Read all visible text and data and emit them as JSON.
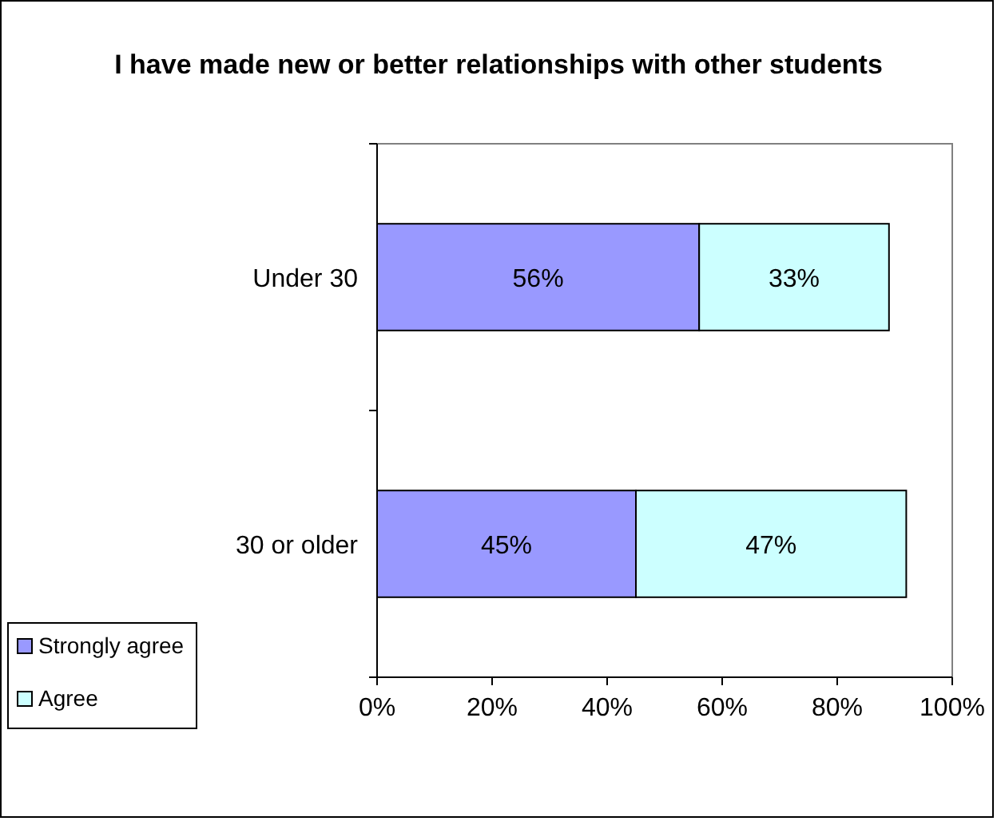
{
  "chart_data": {
    "type": "bar",
    "title": "I have made new or better relationships with other students",
    "orientation": "horizontal",
    "stacked": true,
    "categories": [
      "Under 30",
      "30 or older"
    ],
    "series": [
      {
        "name": "Strongly agree",
        "color": "#9999ff",
        "values": [
          56,
          45
        ],
        "value_labels": [
          "56%",
          "45%"
        ]
      },
      {
        "name": "Agree",
        "color": "#ccffff",
        "values": [
          33,
          47
        ],
        "value_labels": [
          "33%",
          "47%"
        ]
      }
    ],
    "xlim": [
      0,
      100
    ],
    "xticks": [
      {
        "value": 0,
        "label": "0%"
      },
      {
        "value": 20,
        "label": "20%"
      },
      {
        "value": 40,
        "label": "40%"
      },
      {
        "value": 60,
        "label": "60%"
      },
      {
        "value": 80,
        "label": "80%"
      },
      {
        "value": 100,
        "label": "100%"
      }
    ],
    "grid": false,
    "legend": "bottom left"
  }
}
